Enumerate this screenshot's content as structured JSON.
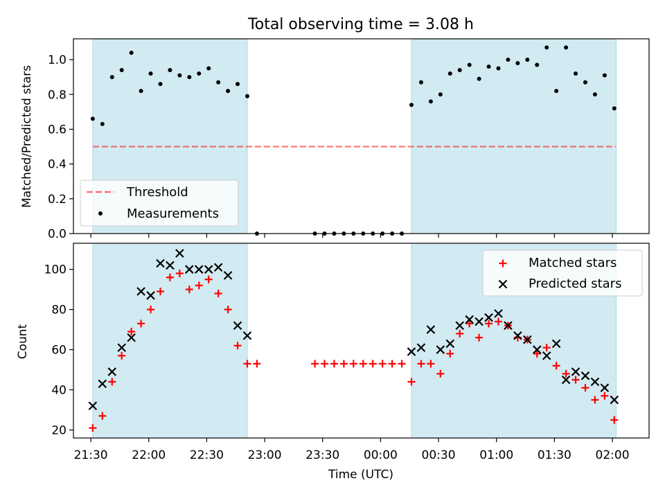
{
  "title": "Total observing time = 3.08 h",
  "colors": {
    "shade": "#add8e6",
    "threshold": "#ff0000",
    "measurement": "#000000",
    "matched": "#ff0000",
    "predicted": "#000000"
  },
  "chart_data": [
    {
      "type": "scatter",
      "panel": "top",
      "ylabel": "Matched/Predicted stars",
      "ylim": [
        0,
        1.12
      ],
      "yticks": [
        "0.0",
        "0.2",
        "0.4",
        "0.6",
        "0.8",
        "1.0"
      ],
      "x_unit": "minutes after 21:30 UTC",
      "xlim": [
        -9,
        289
      ],
      "shaded_ranges": [
        [
          1,
          81
        ],
        [
          166,
          272
        ]
      ],
      "threshold": {
        "name": "Threshold",
        "value": 0.5
      },
      "legend_position": "lower left",
      "series": [
        {
          "name": "Measurements",
          "x": [
            1,
            6,
            11,
            16,
            21,
            26,
            31,
            36,
            41,
            46,
            51,
            56,
            61,
            66,
            71,
            76,
            81,
            86,
            116,
            121,
            126,
            131,
            136,
            141,
            146,
            151,
            156,
            161,
            166,
            171,
            176,
            181,
            186,
            191,
            196,
            201,
            206,
            211,
            216,
            221,
            226,
            231,
            236,
            241,
            246,
            251,
            256,
            261,
            266,
            271
          ],
          "y": [
            0.66,
            0.63,
            0.9,
            0.94,
            1.04,
            0.82,
            0.92,
            0.86,
            0.94,
            0.91,
            0.9,
            0.92,
            0.95,
            0.87,
            0.82,
            0.86,
            0.79,
            0.0,
            0.0,
            0.0,
            0.0,
            0.0,
            0.0,
            0.0,
            0.0,
            0.0,
            0.0,
            0.0,
            0.74,
            0.87,
            0.76,
            0.8,
            0.92,
            0.94,
            0.97,
            0.89,
            0.96,
            0.95,
            1.0,
            0.98,
            1.0,
            0.97,
            1.07,
            0.82,
            1.07,
            0.92,
            0.87,
            0.8,
            0.91,
            0.72
          ]
        }
      ]
    },
    {
      "type": "scatter",
      "panel": "bottom",
      "xlabel": "Time (UTC)",
      "ylabel": "Count",
      "ylim": [
        16,
        113
      ],
      "yticks": [
        "20",
        "40",
        "60",
        "80",
        "100"
      ],
      "x_unit": "minutes after 21:30 UTC",
      "xlim": [
        -9,
        289
      ],
      "xticks": [
        {
          "value": 0,
          "label": "21:30"
        },
        {
          "value": 30,
          "label": "22:00"
        },
        {
          "value": 60,
          "label": "22:30"
        },
        {
          "value": 90,
          "label": "23:00"
        },
        {
          "value": 120,
          "label": "23:30"
        },
        {
          "value": 150,
          "label": "00:00"
        },
        {
          "value": 180,
          "label": "00:30"
        },
        {
          "value": 210,
          "label": "01:00"
        },
        {
          "value": 240,
          "label": "01:30"
        },
        {
          "value": 270,
          "label": "02:00"
        }
      ],
      "shaded_ranges": [
        [
          1,
          81
        ],
        [
          166,
          272
        ]
      ],
      "legend_position": "upper right",
      "series": [
        {
          "name": "Matched stars",
          "x": [
            1,
            6,
            11,
            16,
            21,
            26,
            31,
            36,
            41,
            46,
            51,
            56,
            61,
            66,
            71,
            76,
            81,
            86,
            116,
            121,
            126,
            131,
            136,
            141,
            146,
            151,
            156,
            161,
            166,
            171,
            176,
            181,
            186,
            191,
            196,
            201,
            206,
            211,
            216,
            221,
            226,
            231,
            236,
            241,
            246,
            251,
            256,
            261,
            266,
            271
          ],
          "y": [
            21,
            27,
            44,
            57,
            69,
            73,
            80,
            89,
            96,
            98,
            90,
            92,
            95,
            88,
            80,
            62,
            53,
            53,
            53,
            53,
            53,
            53,
            53,
            53,
            53,
            53,
            53,
            53,
            44,
            53,
            53,
            48,
            58,
            68,
            73,
            66,
            73,
            74,
            72,
            66,
            65,
            58,
            61,
            52,
            48,
            45,
            41,
            35,
            37,
            25
          ]
        },
        {
          "name": "Predicted stars",
          "x": [
            1,
            6,
            11,
            16,
            21,
            26,
            31,
            36,
            41,
            46,
            51,
            56,
            61,
            66,
            71,
            76,
            81,
            166,
            171,
            176,
            181,
            186,
            191,
            196,
            201,
            206,
            211,
            216,
            221,
            226,
            231,
            236,
            241,
            246,
            251,
            256,
            261,
            266,
            271
          ],
          "y": [
            32,
            43,
            49,
            61,
            66,
            89,
            87,
            103,
            102,
            108,
            100,
            100,
            100,
            101,
            97,
            72,
            67,
            59,
            61,
            70,
            60,
            63,
            72,
            75,
            74,
            76,
            78,
            72,
            67,
            65,
            60,
            57,
            63,
            45,
            49,
            47,
            44,
            41,
            35
          ]
        }
      ]
    }
  ]
}
